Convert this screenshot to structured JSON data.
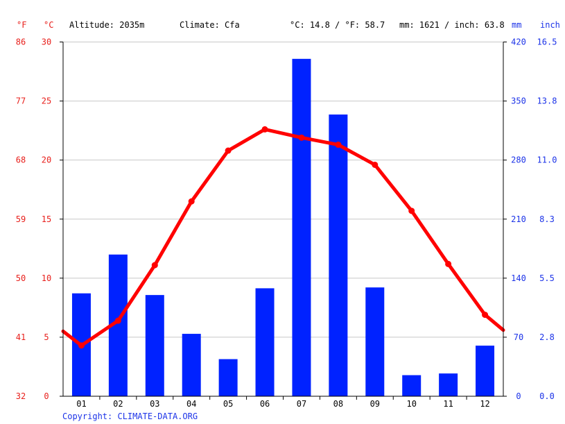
{
  "header": {
    "altitude": "Altitude: 2035m",
    "climate": "Climate: Cfa",
    "temp_avg": "°C: 14.8 / °F: 58.7",
    "precip_total": "mm: 1621 / inch: 63.8"
  },
  "copyright": "Copyright: CLIMATE-DATA.ORG",
  "colors": {
    "temperature": "#ff0000",
    "precipitation": "#0022ff",
    "grid": "#c8c8c8"
  },
  "chart_data": {
    "type": "bar+line",
    "categories": [
      "01",
      "02",
      "03",
      "04",
      "05",
      "06",
      "07",
      "08",
      "09",
      "10",
      "11",
      "12"
    ],
    "series": [
      {
        "name": "precipitation",
        "unit": "mm",
        "axis": "right",
        "values": [
          122,
          168,
          120,
          74,
          44,
          128,
          400,
          334,
          129,
          25,
          27,
          60
        ]
      },
      {
        "name": "temperature",
        "unit": "°C",
        "axis": "left",
        "values": [
          4.3,
          6.4,
          11.1,
          16.5,
          20.8,
          22.6,
          21.9,
          21.3,
          19.6,
          15.7,
          11.2,
          6.9
        ]
      }
    ],
    "temp_line_start": 5.5,
    "temp_line_end": 5.6,
    "y_left_c": {
      "label": "°C",
      "ticks": [
        0,
        5,
        10,
        15,
        20,
        25,
        30
      ],
      "range": [
        0,
        30
      ]
    },
    "y_left_f": {
      "label": "°F",
      "ticks": [
        32,
        41,
        50,
        59,
        68,
        77,
        86
      ]
    },
    "y_right_mm": {
      "label": "mm",
      "ticks": [
        0,
        70,
        140,
        210,
        280,
        350,
        420
      ],
      "range": [
        0,
        420
      ]
    },
    "y_right_inch": {
      "label": "inch",
      "ticks": [
        "0.0",
        "2.8",
        "5.5",
        "8.3",
        "11.0",
        "13.8",
        "16.5"
      ]
    },
    "grid": true
  }
}
